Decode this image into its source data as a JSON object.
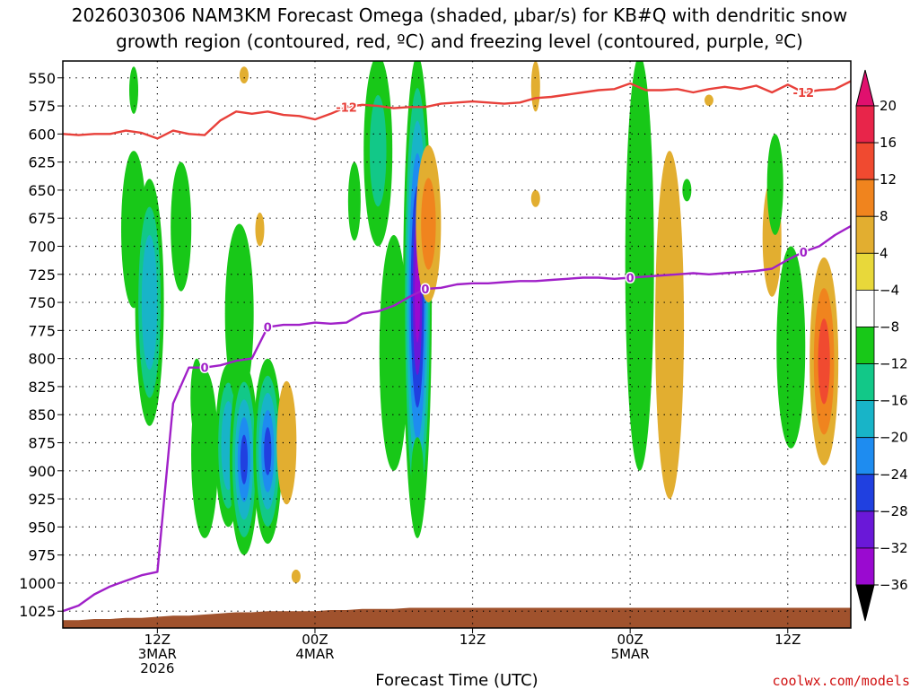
{
  "title": {
    "line1": "2026030306 NAM3KM Forecast Omega (shaded, μbar/s) for KB#Q with dendritic snow",
    "line2": "growth region (contoured, red, ºC) and freezing level (contoured, purple, ºC)"
  },
  "credit": "coolwx.com/models",
  "colors": {
    "dgz_line": "#e8403a",
    "freezing_line": "#a020c8",
    "terrain": "#a0522d",
    "frame": "#000000"
  },
  "chart_data": {
    "type": "heatmap",
    "xlabel": "Forecast Time (UTC)",
    "ylabel": "",
    "x_units": "hours from 2026-03-03 00Z",
    "xlim": [
      6,
      56
    ],
    "ylim": [
      1040,
      535
    ],
    "y_ticks": [
      "550",
      "575",
      "600",
      "625",
      "650",
      "675",
      "700",
      "725",
      "750",
      "775",
      "800",
      "825",
      "850",
      "875",
      "900",
      "925",
      "950",
      "975",
      "1000",
      "1025"
    ],
    "x_ticks": [
      {
        "hour": 12,
        "lines": [
          "12Z",
          "3MAR",
          "2026"
        ]
      },
      {
        "hour": 22,
        "lines": [
          "00Z",
          "4MAR"
        ]
      },
      {
        "hour": 32,
        "lines": [
          "12Z"
        ]
      },
      {
        "hour": 42,
        "lines": [
          "00Z",
          "5MAR"
        ]
      },
      {
        "hour": 52,
        "lines": [
          "12Z"
        ]
      }
    ],
    "colorbar": {
      "labels": [
        "20",
        "16",
        "12",
        "8",
        "4",
        "−4",
        "−8",
        "−12",
        "−16",
        "−20",
        "−24",
        "−28",
        "−32",
        "−36"
      ],
      "bins": [
        {
          "from": 16,
          "to": 20,
          "color": "#e8254a"
        },
        {
          "from": 12,
          "to": 16,
          "color": "#f04a30"
        },
        {
          "from": 8,
          "to": 12,
          "color": "#f0841e"
        },
        {
          "from": 4,
          "to": 8,
          "color": "#e2ae30"
        },
        {
          "from": 0,
          "to": 4,
          "color": "#e8d83a"
        },
        {
          "from": -4,
          "to": 4,
          "color": "#ffffff"
        },
        {
          "from": -8,
          "to": -4,
          "color": "#18c818"
        },
        {
          "from": -12,
          "to": -8,
          "color": "#12c888"
        },
        {
          "from": -16,
          "to": -12,
          "color": "#18b4c8"
        },
        {
          "from": -20,
          "to": -16,
          "color": "#1e8cf0"
        },
        {
          "from": -24,
          "to": -20,
          "color": "#2040e0"
        },
        {
          "from": -28,
          "to": -24,
          "color": "#6a18d8"
        },
        {
          "from": -32,
          "to": -28,
          "color": "#9a0ad0"
        },
        {
          "from": -36,
          "to": -32,
          "color": "#a8a8a8"
        }
      ],
      "top_cap_color": "#e0106e",
      "bottom_cap_color": "#000000"
    },
    "dgz_contour": {
      "label": "-12",
      "x": [
        6,
        7,
        8,
        9,
        10,
        11,
        12,
        13,
        14,
        15,
        16,
        17,
        18,
        19,
        20,
        21,
        22,
        23,
        24,
        25,
        26,
        27,
        28,
        29,
        30,
        31,
        32,
        33,
        34,
        35,
        36,
        37,
        38,
        39,
        40,
        41,
        42,
        43,
        44,
        45,
        46,
        47,
        48,
        49,
        50,
        51,
        52,
        53,
        54,
        55,
        56
      ],
      "y": [
        600,
        601,
        600,
        600,
        597,
        599,
        604,
        597,
        600,
        601,
        588,
        580,
        582,
        580,
        583,
        584,
        587,
        582,
        576,
        574,
        575,
        577,
        576,
        576,
        573,
        572,
        571,
        572,
        573,
        572,
        568,
        567,
        565,
        563,
        561,
        560,
        555,
        561,
        561,
        560,
        563,
        560,
        558,
        560,
        557,
        563,
        556,
        563,
        561,
        560,
        553
      ]
    },
    "freezing_contour": {
      "label": "0",
      "x": [
        6,
        7,
        8,
        9,
        10,
        11,
        12,
        13,
        14,
        15,
        16,
        17,
        18,
        19,
        20,
        21,
        22,
        23,
        24,
        25,
        26,
        27,
        28,
        29,
        30,
        31,
        32,
        33,
        34,
        35,
        36,
        37,
        38,
        39,
        40,
        41,
        42,
        43,
        44,
        45,
        46,
        47,
        48,
        49,
        50,
        51,
        52,
        53,
        54,
        55,
        56
      ],
      "y": [
        1025,
        1020,
        1010,
        1003,
        998,
        993,
        990,
        840,
        808,
        808,
        806,
        802,
        800,
        772,
        770,
        770,
        768,
        769,
        768,
        760,
        758,
        753,
        745,
        738,
        737,
        734,
        733,
        733,
        732,
        731,
        731,
        730,
        729,
        728,
        728,
        729,
        728,
        727,
        726,
        725,
        724,
        725,
        724,
        723,
        722,
        720,
        712,
        705,
        700,
        690,
        682
      ]
    },
    "terrain_top_hPa": [
      1033,
      1033,
      1032,
      1032,
      1031,
      1031,
      1030,
      1029,
      1029,
      1028,
      1027,
      1026,
      1026,
      1025,
      1025,
      1025,
      1025,
      1024,
      1024,
      1023,
      1023,
      1023,
      1022,
      1022,
      1022,
      1022,
      1022,
      1022,
      1022,
      1022,
      1022,
      1022,
      1022,
      1022,
      1022,
      1022,
      1022,
      1022,
      1022,
      1022,
      1022,
      1022,
      1022,
      1022,
      1022,
      1022,
      1022,
      1022,
      1022,
      1022,
      1022
    ],
    "omega_features": [
      {
        "hour": 10.5,
        "p_top": 540,
        "p_bot": 582,
        "min": -6
      },
      {
        "hour": 10.5,
        "p_top": 615,
        "p_bot": 755,
        "min": -6
      },
      {
        "hour": 11.5,
        "p_top": 640,
        "p_bot": 860,
        "min": -14
      },
      {
        "hour": 13.5,
        "p_top": 625,
        "p_bot": 740,
        "min": -6
      },
      {
        "hour": 14.5,
        "p_top": 800,
        "p_bot": 870,
        "min": -6
      },
      {
        "hour": 15,
        "p_top": 810,
        "p_bot": 960,
        "min": -6
      },
      {
        "hour": 16.5,
        "p_top": 805,
        "p_bot": 950,
        "min": -14
      },
      {
        "hour": 17.2,
        "p_top": 680,
        "p_bot": 840,
        "min": -6
      },
      {
        "hour": 17.5,
        "p_top": 805,
        "p_bot": 975,
        "min": -20
      },
      {
        "hour": 19,
        "p_top": 800,
        "p_bot": 965,
        "min": -20
      },
      {
        "hour": 17.5,
        "p_top": 540,
        "p_bot": 555,
        "min": 6
      },
      {
        "hour": 18.5,
        "p_top": 670,
        "p_bot": 700,
        "min": 6
      },
      {
        "hour": 20.2,
        "p_top": 820,
        "p_bot": 930,
        "min": 6
      },
      {
        "hour": 20.8,
        "p_top": 988,
        "p_bot": 1000,
        "min": 6
      },
      {
        "hour": 24.5,
        "p_top": 625,
        "p_bot": 695,
        "min": -6
      },
      {
        "hour": 26,
        "p_top": 530,
        "p_bot": 700,
        "min": -8
      },
      {
        "hour": 27,
        "p_top": 690,
        "p_bot": 900,
        "min": -6
      },
      {
        "hour": 28.5,
        "p_top": 530,
        "p_bot": 960,
        "min": -28
      },
      {
        "hour": 29.2,
        "p_top": 610,
        "p_bot": 750,
        "min": 10
      },
      {
        "hour": 28.5,
        "p_top": 870,
        "p_bot": 940,
        "min": -6
      },
      {
        "hour": 36,
        "p_top": 535,
        "p_bot": 580,
        "min": 6
      },
      {
        "hour": 36,
        "p_top": 650,
        "p_bot": 665,
        "min": 6
      },
      {
        "hour": 42.6,
        "p_top": 530,
        "p_bot": 900,
        "min": -6
      },
      {
        "hour": 44.5,
        "p_top": 615,
        "p_bot": 925,
        "min": 6
      },
      {
        "hour": 45.6,
        "p_top": 640,
        "p_bot": 660,
        "min": -6
      },
      {
        "hour": 47,
        "p_top": 565,
        "p_bot": 575,
        "min": 6
      },
      {
        "hour": 51,
        "p_top": 640,
        "p_bot": 745,
        "min": 6
      },
      {
        "hour": 51.2,
        "p_top": 600,
        "p_bot": 690,
        "min": -6
      },
      {
        "hour": 52.2,
        "p_top": 700,
        "p_bot": 880,
        "min": -6
      },
      {
        "hour": 54.3,
        "p_top": 710,
        "p_bot": 895,
        "min": 14
      }
    ]
  }
}
